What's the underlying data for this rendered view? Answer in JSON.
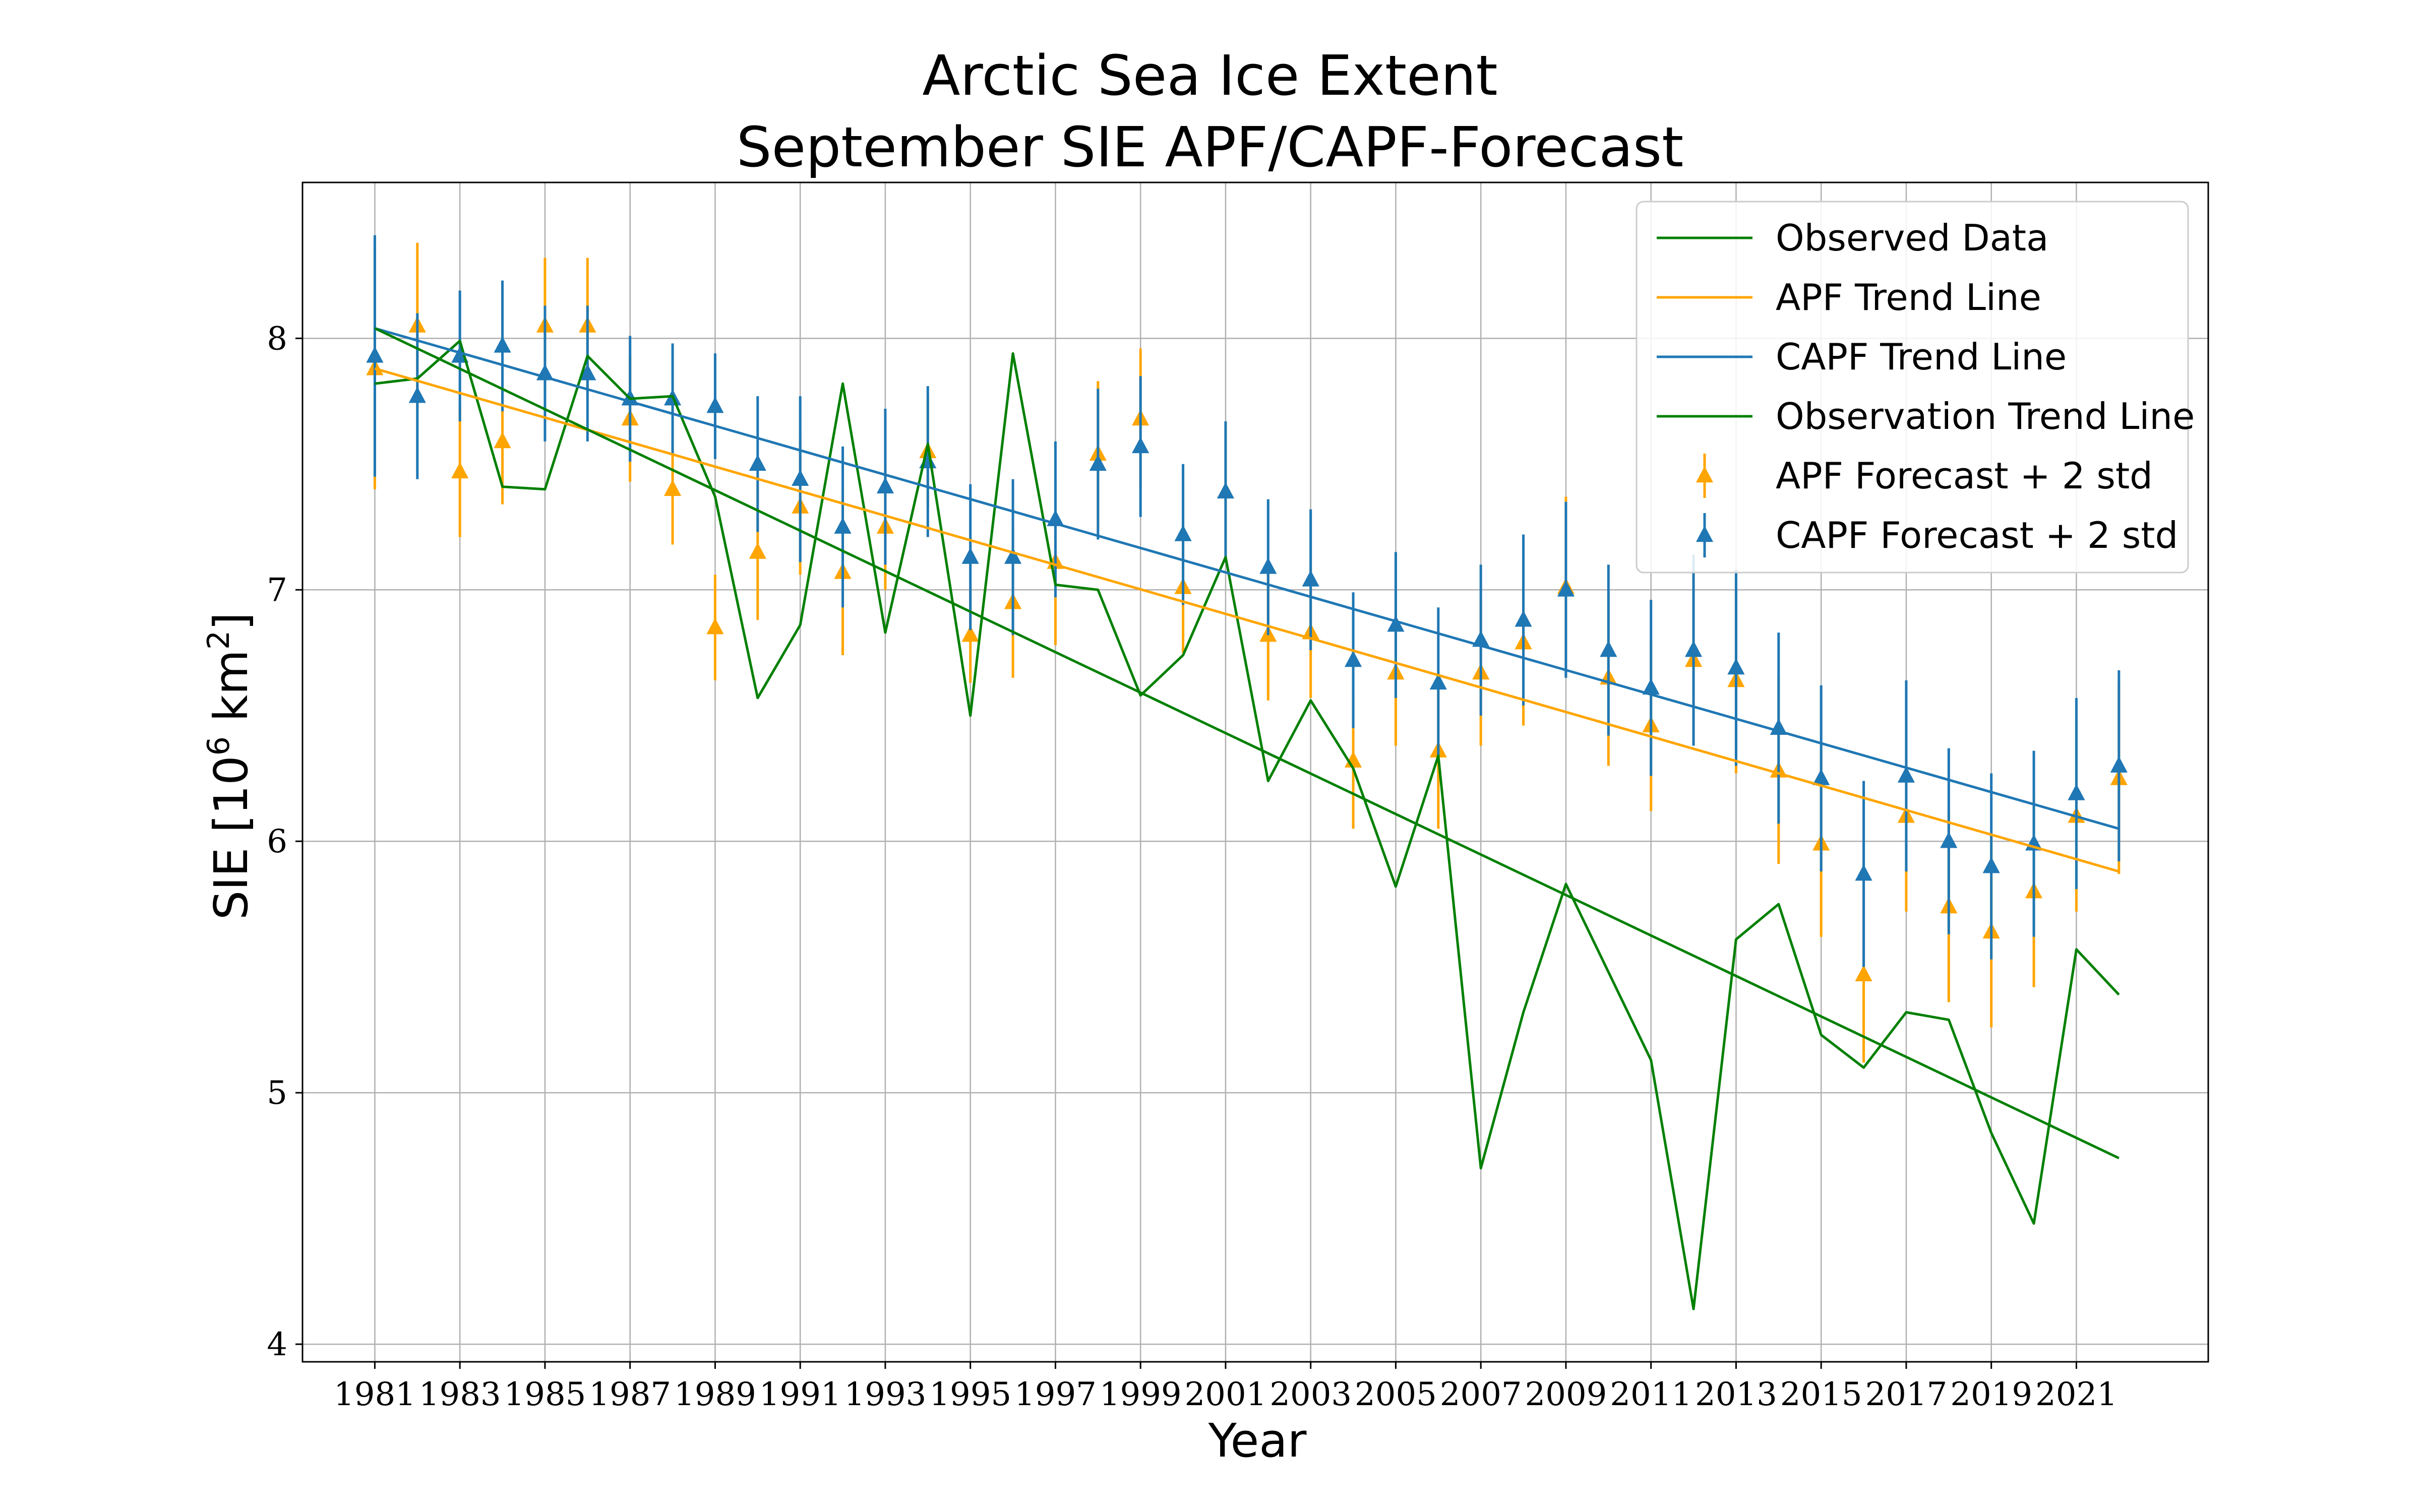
{
  "chart_data": {
    "type": "line",
    "title_line1": "Arctic Sea Ice Extent",
    "title_line2": "September SIE APF/CAPF-Forecast",
    "xlabel": "Year",
    "ylabel_main": "SIE [10",
    "ylabel_exp": "6",
    "ylabel_unit": " km",
    "ylabel_sq": "2",
    "ylabel_close": "]",
    "xlim": [
      1979.3,
      2024.1
    ],
    "ylim": [
      3.93,
      8.62
    ],
    "grid": true,
    "legend_position": "top-right",
    "x_ticks": [
      1981,
      1983,
      1985,
      1987,
      1989,
      1991,
      1993,
      1995,
      1997,
      1999,
      2001,
      2003,
      2005,
      2007,
      2009,
      2011,
      2013,
      2015,
      2017,
      2019,
      2021
    ],
    "x_tick_labels": [
      "1981",
      "1983",
      "1985",
      "1987",
      "1989",
      "1991",
      "1993",
      "1995",
      "1997",
      "1999",
      "2001",
      "2003",
      "2005",
      "2007",
      "2009",
      "2011",
      "2013",
      "2015",
      "2017",
      "2019",
      "2021"
    ],
    "y_ticks": [
      4,
      5,
      6,
      7,
      8
    ],
    "y_tick_labels": [
      "4",
      "5",
      "6",
      "7",
      "8"
    ],
    "years": [
      1981,
      1982,
      1983,
      1984,
      1985,
      1986,
      1987,
      1988,
      1989,
      1990,
      1991,
      1992,
      1993,
      1994,
      1995,
      1996,
      1997,
      1998,
      1999,
      2000,
      2001,
      2002,
      2003,
      2004,
      2005,
      2006,
      2007,
      2008,
      2009,
      2010,
      2011,
      2012,
      2013,
      2014,
      2015,
      2016,
      2017,
      2018,
      2019,
      2020,
      2021,
      2022
    ],
    "observed": [
      7.82,
      7.84,
      7.99,
      7.41,
      7.4,
      7.93,
      7.76,
      7.77,
      7.37,
      6.57,
      6.86,
      7.82,
      6.83,
      7.58,
      6.5,
      7.94,
      7.02,
      7.0,
      6.58,
      6.74,
      7.13,
      6.24,
      6.56,
      6.29,
      5.82,
      6.34,
      4.7,
      5.32,
      5.83,
      5.48,
      5.13,
      4.14,
      5.61,
      5.75,
      5.23,
      5.1,
      5.32,
      5.29,
      4.84,
      4.48,
      5.57,
      5.39
    ],
    "series": [
      {
        "name": "Observed Data",
        "color": "#008000",
        "kind": "line",
        "data_key": "observed"
      },
      {
        "name": "APF Trend Line",
        "color": "#ffa500",
        "kind": "trend",
        "start": [
          1981,
          7.88
        ],
        "end": [
          2022,
          5.88
        ]
      },
      {
        "name": "CAPF Trend Line",
        "color": "#1f77b4",
        "kind": "trend",
        "start": [
          1981,
          8.04
        ],
        "end": [
          2022,
          6.05
        ]
      },
      {
        "name": "Observation Trend Line",
        "color": "#008000",
        "kind": "trend",
        "start": [
          1981,
          8.04
        ],
        "end": [
          2022,
          4.74
        ]
      },
      {
        "name": "APF Forecast + 2 std",
        "color": "#ffa500",
        "kind": "errorbar",
        "values": [
          7.88,
          8.05,
          7.47,
          7.59,
          8.05,
          8.05,
          7.68,
          7.4,
          6.85,
          7.15,
          7.33,
          7.07,
          7.25,
          7.55,
          6.82,
          6.95,
          7.11,
          7.54,
          7.68,
          7.01,
          7.39,
          6.82,
          6.83,
          6.32,
          6.67,
          6.36,
          6.67,
          6.79,
          7.01,
          6.65,
          6.46,
          6.72,
          6.64,
          6.28,
          5.99,
          5.47,
          6.1,
          5.74,
          5.64,
          5.8,
          6.1,
          6.25
        ],
        "std2": [
          0.48,
          0.33,
          0.26,
          0.25,
          0.27,
          0.27,
          0.25,
          0.22,
          0.21,
          0.27,
          0.27,
          0.33,
          0.25,
          0.22,
          0.19,
          0.3,
          0.33,
          0.29,
          0.28,
          0.26,
          0.26,
          0.26,
          0.26,
          0.27,
          0.29,
          0.31,
          0.29,
          0.33,
          0.36,
          0.35,
          0.34,
          0.33,
          0.37,
          0.37,
          0.37,
          0.35,
          0.38,
          0.38,
          0.38,
          0.38,
          0.38,
          0.38
        ]
      },
      {
        "name": "CAPF Forecast + 2 std",
        "color": "#1f77b4",
        "kind": "errorbar",
        "values": [
          7.93,
          7.77,
          7.93,
          7.97,
          7.86,
          7.86,
          7.76,
          7.76,
          7.73,
          7.5,
          7.44,
          7.25,
          7.41,
          7.51,
          7.13,
          7.13,
          7.28,
          7.5,
          7.57,
          7.22,
          7.39,
          7.09,
          7.04,
          6.72,
          6.86,
          6.63,
          6.8,
          6.88,
          7.0,
          6.76,
          6.61,
          6.76,
          6.69,
          6.45,
          6.25,
          5.87,
          6.26,
          6.0,
          5.9,
          5.99,
          6.19,
          6.3
        ],
        "std2": [
          0.48,
          0.33,
          0.26,
          0.26,
          0.27,
          0.27,
          0.25,
          0.22,
          0.21,
          0.27,
          0.33,
          0.32,
          0.31,
          0.3,
          0.29,
          0.31,
          0.31,
          0.3,
          0.28,
          0.28,
          0.28,
          0.27,
          0.28,
          0.27,
          0.29,
          0.3,
          0.3,
          0.34,
          0.35,
          0.34,
          0.35,
          0.38,
          0.39,
          0.38,
          0.37,
          0.37,
          0.38,
          0.37,
          0.37,
          0.37,
          0.38,
          0.38
        ]
      }
    ]
  }
}
